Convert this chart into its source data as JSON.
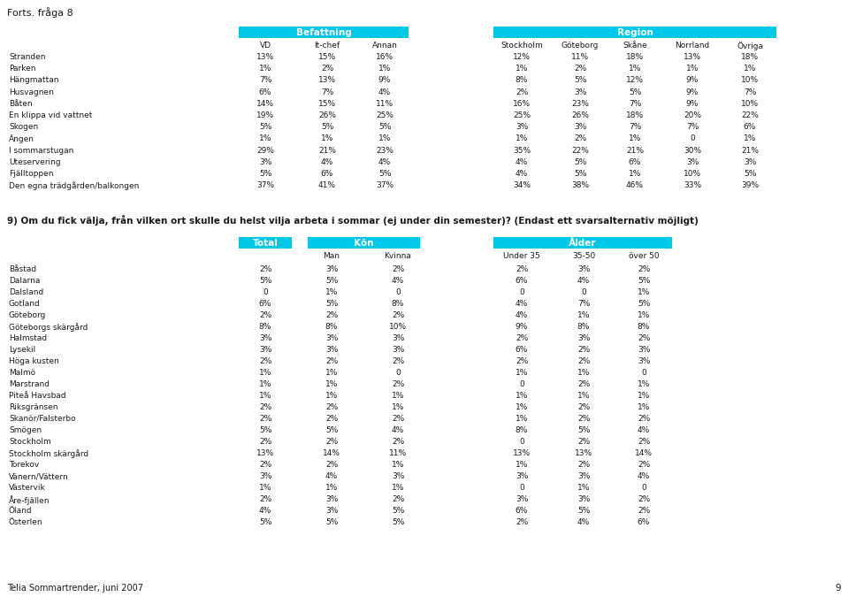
{
  "title": "Forts. fråga 8",
  "footer": "Telia Sommartrender, juni 2007",
  "page_num": "9",
  "header_cyan": "#00C8E8",
  "table1": {
    "group1_header": "Befattning",
    "group2_header": "Region",
    "col_headers": [
      "VD",
      "It-chef",
      "Annan",
      "Stockholm",
      "Göteborg",
      "Skåne",
      "Norrland",
      "Övriga"
    ],
    "rows": [
      [
        "Stranden",
        "13%",
        "15%",
        "16%",
        "12%",
        "11%",
        "18%",
        "13%",
        "18%"
      ],
      [
        "Parken",
        "1%",
        "2%",
        "1%",
        "1%",
        "2%",
        "1%",
        "1%",
        "1%"
      ],
      [
        "Hängmattan",
        "7%",
        "13%",
        "9%",
        "8%",
        "5%",
        "12%",
        "9%",
        "10%"
      ],
      [
        "Husvagnen",
        "6%",
        "7%",
        "4%",
        "2%",
        "3%",
        "5%",
        "9%",
        "7%"
      ],
      [
        "Båten",
        "14%",
        "15%",
        "11%",
        "16%",
        "23%",
        "7%",
        "9%",
        "10%"
      ],
      [
        "En klippa vid vattnet",
        "19%",
        "26%",
        "25%",
        "25%",
        "26%",
        "18%",
        "20%",
        "22%"
      ],
      [
        "Skogen",
        "5%",
        "5%",
        "5%",
        "3%",
        "3%",
        "7%",
        "7%",
        "6%"
      ],
      [
        "Ängen",
        "1%",
        "1%",
        "1%",
        "1%",
        "2%",
        "1%",
        "0",
        "1%"
      ],
      [
        "I sommarstugan",
        "29%",
        "21%",
        "23%",
        "35%",
        "22%",
        "21%",
        "30%",
        "21%"
      ],
      [
        "Uteservering",
        "3%",
        "4%",
        "4%",
        "4%",
        "5%",
        "6%",
        "3%",
        "3%"
      ],
      [
        "Fjälltoppen",
        "5%",
        "6%",
        "5%",
        "4%",
        "5%",
        "1%",
        "10%",
        "5%"
      ],
      [
        "Den egna trädgården/balkongen",
        "37%",
        "41%",
        "37%",
        "34%",
        "38%",
        "46%",
        "33%",
        "39%"
      ]
    ]
  },
  "question": "9) Om du fick välja, från vilken ort skulle du helst vilja arbeta i sommar (ej under din semester)? (Endast ett svarsalternativ möjligt)",
  "table2": {
    "group1_header": "Total",
    "group2_header": "Kön",
    "group3_header": "Ålder",
    "col_headers": [
      "",
      "Man",
      "Kvinna",
      "Under 35",
      "35-50",
      "över 50"
    ],
    "rows": [
      [
        "Båstad",
        "2%",
        "3%",
        "2%",
        "2%",
        "3%",
        "2%"
      ],
      [
        "Dalarna",
        "5%",
        "5%",
        "4%",
        "6%",
        "4%",
        "5%"
      ],
      [
        "Dalsland",
        "0",
        "1%",
        "0",
        "0",
        "0",
        "1%"
      ],
      [
        "Gotland",
        "6%",
        "5%",
        "8%",
        "4%",
        "7%",
        "5%"
      ],
      [
        "Göteborg",
        "2%",
        "2%",
        "2%",
        "4%",
        "1%",
        "1%"
      ],
      [
        "Göteborgs skärgård",
        "8%",
        "8%",
        "10%",
        "9%",
        "8%",
        "8%"
      ],
      [
        "Halmstad",
        "3%",
        "3%",
        "3%",
        "2%",
        "3%",
        "2%"
      ],
      [
        "Lysekil",
        "3%",
        "3%",
        "3%",
        "6%",
        "2%",
        "3%"
      ],
      [
        "Höga kusten",
        "2%",
        "2%",
        "2%",
        "2%",
        "2%",
        "3%"
      ],
      [
        "Malmö",
        "1%",
        "1%",
        "0",
        "1%",
        "1%",
        "0"
      ],
      [
        "Marstrand",
        "1%",
        "1%",
        "2%",
        "0",
        "2%",
        "1%"
      ],
      [
        "Piteå Havsbad",
        "1%",
        "1%",
        "1%",
        "1%",
        "1%",
        "1%"
      ],
      [
        "Riksgränsen",
        "2%",
        "2%",
        "1%",
        "1%",
        "2%",
        "1%"
      ],
      [
        "Skanör/Falsterbo",
        "2%",
        "2%",
        "2%",
        "1%",
        "2%",
        "2%"
      ],
      [
        "Smögen",
        "5%",
        "5%",
        "4%",
        "8%",
        "5%",
        "4%"
      ],
      [
        "Stockholm",
        "2%",
        "2%",
        "2%",
        "0",
        "2%",
        "2%"
      ],
      [
        "Stockholm skärgård",
        "13%",
        "14%",
        "11%",
        "13%",
        "13%",
        "14%"
      ],
      [
        "Torekov",
        "2%",
        "2%",
        "1%",
        "1%",
        "2%",
        "2%"
      ],
      [
        "Vänern/Vättern",
        "3%",
        "4%",
        "3%",
        "3%",
        "3%",
        "4%"
      ],
      [
        "Västervik",
        "1%",
        "1%",
        "1%",
        "0",
        "1%",
        "0"
      ],
      [
        "Åre-fjällen",
        "2%",
        "3%",
        "2%",
        "3%",
        "3%",
        "2%"
      ],
      [
        "Öland",
        "4%",
        "3%",
        "5%",
        "6%",
        "5%",
        "2%"
      ],
      [
        "Österlen",
        "5%",
        "5%",
        "5%",
        "2%",
        "4%",
        "6%"
      ]
    ]
  }
}
